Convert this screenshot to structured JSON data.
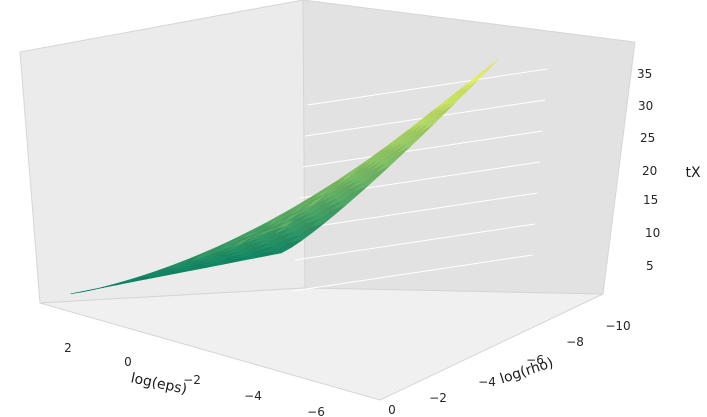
{
  "chart_data": {
    "type": "surface3d",
    "xlabel": "log(eps)",
    "ylabel": "log(rho)",
    "zlabel": "tX",
    "x_ticks": [
      "2",
      "0",
      "−2",
      "−4",
      "−6"
    ],
    "y_ticks": [
      "0",
      "−2",
      "−4",
      "−6",
      "−8",
      "−10"
    ],
    "z_ticks": [
      "5",
      "10",
      "15",
      "20",
      "25",
      "30",
      "35"
    ],
    "xlim": [
      -6,
      3
    ],
    "ylim": [
      -11,
      0
    ],
    "zlim": [
      0,
      38
    ],
    "grid": true,
    "colormap": "summer",
    "colormap_stops": [
      "#008066",
      "#ffff66"
    ],
    "surface_corners_z": {
      "eps_2_rho_0": 1,
      "eps_-5_rho_0": 2.5,
      "eps_2_rho_-10": 14,
      "eps_-5_rho_-10": 37
    }
  }
}
